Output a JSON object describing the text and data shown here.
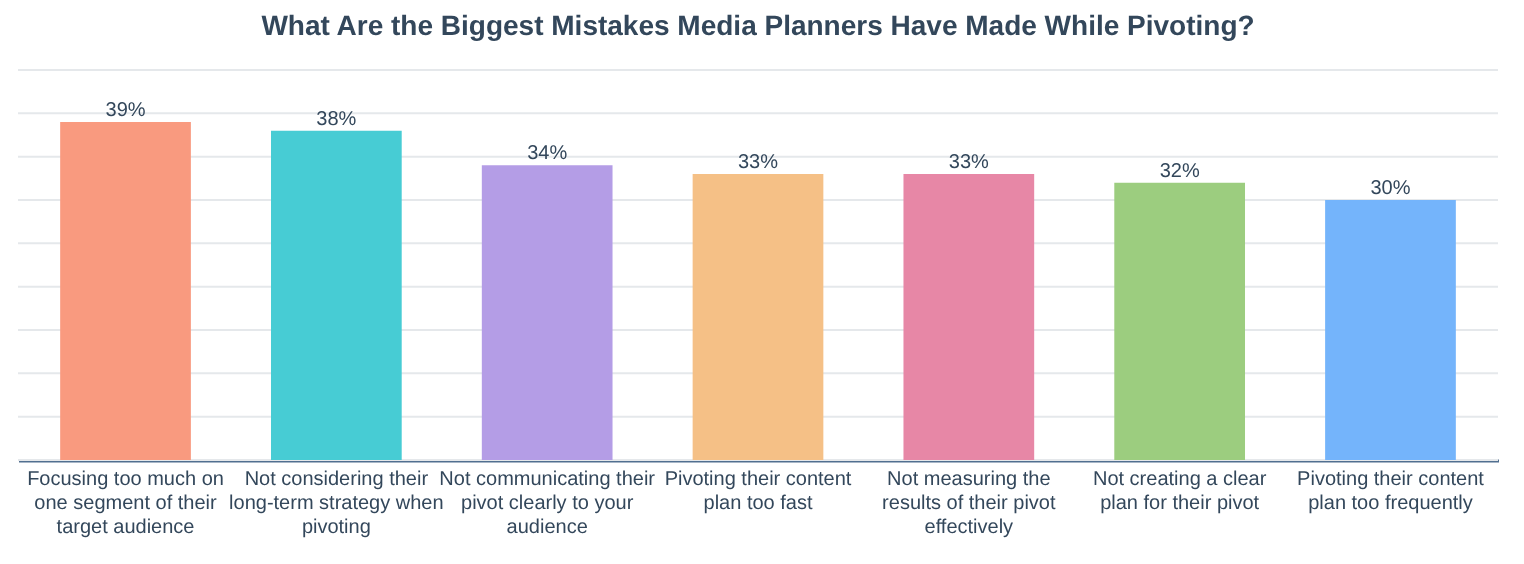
{
  "chart_data": {
    "type": "bar",
    "title": "What Are the Biggest Mistakes Media Planners Have Made While Pivoting?",
    "categories": [
      "Focusing too much on one segment of their target audience",
      "Not considering their long-term strategy when pivoting",
      "Not communicating their pivot clearly to your audience",
      "Pivoting their content plan too fast",
      "Not measuring the results of their pivot effectively",
      "Not creating a clear plan for their pivot",
      "Pivoting their content plan too frequently"
    ],
    "values": [
      39,
      38,
      34,
      33,
      33,
      32,
      30
    ],
    "value_labels": [
      "39%",
      "38%",
      "34%",
      "33%",
      "33%",
      "32%",
      "30%"
    ],
    "colors": [
      "#f99a7f",
      "#47ccd4",
      "#b49de6",
      "#f5c086",
      "#e787a6",
      "#9ccd7f",
      "#74b4fb"
    ],
    "ylim": [
      0,
      45
    ],
    "yticks": [
      {
        "value": 0,
        "label": null
      },
      {
        "value": 5,
        "label": null
      },
      {
        "value": 10,
        "label": null
      },
      {
        "value": 15,
        "label": null
      },
      {
        "value": 20,
        "label": null
      },
      {
        "value": 25,
        "label": null
      },
      {
        "value": 30,
        "label": null
      },
      {
        "value": 35,
        "label": null
      },
      {
        "value": 40,
        "label": null
      },
      {
        "value": 45,
        "label": null
      }
    ],
    "tick_labels": "x",
    "grid": "y"
  }
}
